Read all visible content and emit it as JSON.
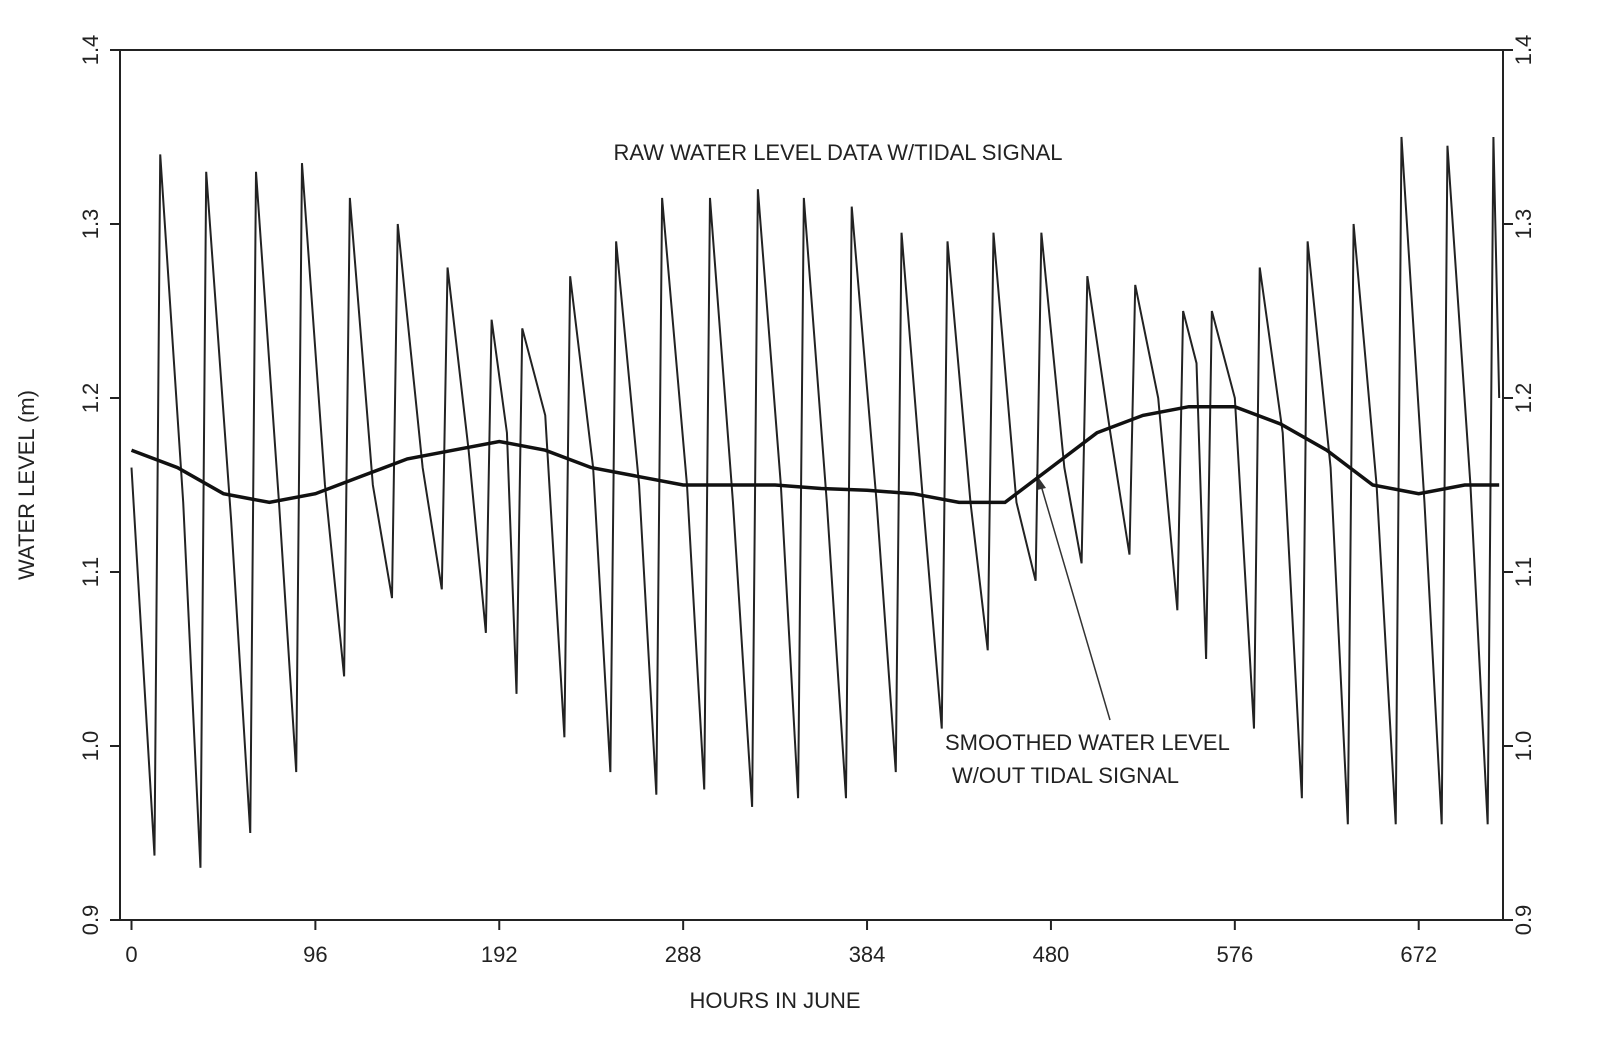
{
  "chart_data": {
    "type": "line",
    "xlabel": "HOURS IN JUNE",
    "ylabel": "WATER LEVEL (m)",
    "annotations": [
      "RAW WATER LEVEL DATA W/TIDAL SIGNAL",
      "SMOOTHED WATER LEVEL",
      "W/OUT TIDAL SIGNAL"
    ],
    "xlim": [
      -6,
      716
    ],
    "xticks": [
      0,
      96,
      192,
      288,
      384,
      480,
      576,
      672
    ],
    "ylim": [
      0.9,
      1.4
    ],
    "yticks": [
      0.9,
      {
        "value": 1,
        "label": "1.0"
      },
      1.1,
      1.2,
      1.3,
      1.4
    ],
    "y2lim": [
      0.9,
      1.4
    ],
    "y2ticks": [
      0.9,
      {
        "value": 1,
        "label": "1.0"
      },
      1.1,
      1.2,
      1.3,
      1.4
    ],
    "series": [
      {
        "color": "#222222",
        "x": [
          0,
          12,
          15,
          27,
          36,
          39,
          52,
          62,
          65,
          77,
          86,
          89,
          101,
          111,
          114,
          126,
          136,
          139,
          152,
          162,
          165,
          176,
          185,
          188,
          196,
          201,
          204,
          216,
          226,
          229,
          241,
          250,
          253,
          265,
          274,
          277,
          290,
          299,
          302,
          314,
          324,
          327,
          339,
          348,
          351,
          363,
          373,
          376,
          389,
          399,
          402,
          414,
          423,
          426,
          438,
          447,
          450,
          462,
          472,
          475,
          487,
          496,
          499,
          511,
          521,
          524,
          536,
          546,
          549,
          556,
          561,
          564,
          576,
          586,
          589,
          601,
          611,
          614,
          626,
          635,
          638,
          650,
          660,
          663,
          675,
          684,
          687,
          699,
          708,
          711,
          714
        ],
        "values": [
          1.16,
          0.937,
          1.34,
          1.14,
          0.93,
          1.33,
          1.13,
          0.95,
          1.33,
          1.14,
          0.985,
          1.335,
          1.15,
          1.04,
          1.315,
          1.15,
          1.085,
          1.3,
          1.16,
          1.09,
          1.275,
          1.17,
          1.065,
          1.245,
          1.18,
          1.03,
          1.24,
          1.19,
          1.005,
          1.27,
          1.16,
          0.985,
          1.29,
          1.15,
          0.972,
          1.315,
          1.15,
          0.975,
          1.315,
          1.14,
          0.965,
          1.32,
          1.15,
          0.97,
          1.315,
          1.14,
          0.97,
          1.31,
          1.14,
          0.985,
          1.295,
          1.13,
          1.01,
          1.29,
          1.14,
          1.055,
          1.295,
          1.14,
          1.095,
          1.295,
          1.16,
          1.105,
          1.27,
          1.18,
          1.11,
          1.265,
          1.2,
          1.078,
          1.25,
          1.22,
          1.05,
          1.25,
          1.2,
          1.01,
          1.275,
          1.18,
          0.97,
          1.29,
          1.16,
          0.955,
          1.3,
          1.15,
          0.955,
          1.35,
          1.14,
          0.955,
          1.345,
          1.15,
          0.955,
          1.35,
          1.2
        ]
      },
      {
        "color": "#111111",
        "x": [
          0,
          24,
          48,
          72,
          96,
          120,
          144,
          168,
          192,
          216,
          240,
          264,
          288,
          312,
          336,
          360,
          384,
          408,
          432,
          456,
          480,
          504,
          528,
          552,
          576,
          600,
          624,
          648,
          672,
          696,
          714
        ],
        "values": [
          1.17,
          1.16,
          1.145,
          1.14,
          1.145,
          1.155,
          1.165,
          1.17,
          1.175,
          1.17,
          1.16,
          1.155,
          1.15,
          1.15,
          1.15,
          1.148,
          1.147,
          1.145,
          1.14,
          1.14,
          1.16,
          1.18,
          1.19,
          1.195,
          1.195,
          1.185,
          1.17,
          1.15,
          1.145,
          1.15,
          1.15
        ]
      }
    ]
  }
}
